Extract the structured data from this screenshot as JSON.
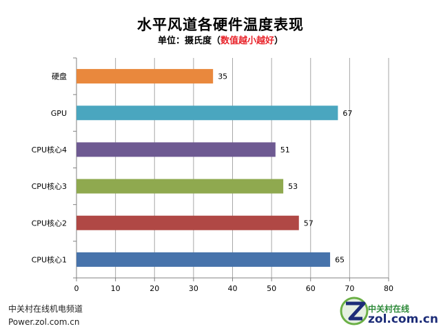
{
  "title": "水平风道各硬件温度表现",
  "subtitle_prefix": "单位：摄氏度（",
  "subtitle_highlight": "数值越小越好",
  "subtitle_suffix": "）",
  "footer": {
    "line1": "中关村在线机电频道",
    "line2": "Power.zol.com.cn"
  },
  "logo": {
    "cn": "中关村在线",
    "en": "zol.com.cn",
    "icon": "zol-z-logo-icon"
  },
  "colors": {
    "grid": "#a6a6a6",
    "axis": "#808080",
    "accent_red": "#e8232a"
  },
  "chart_data": {
    "type": "bar",
    "orientation": "horizontal",
    "categories": [
      "硬盘",
      "GPU",
      "CPU核心4",
      "CPU核心3",
      "CPU核心2",
      "CPU核心1"
    ],
    "values": [
      35,
      67,
      51,
      53,
      57,
      65
    ],
    "bar_colors": [
      "#e9883d",
      "#4aa6bf",
      "#6e5a92",
      "#8fa94f",
      "#b04845",
      "#4773ab"
    ],
    "data_labels": [
      "35",
      "67",
      "51",
      "53",
      "57",
      "65"
    ],
    "xlim": [
      0,
      80
    ],
    "xticks": [
      "0",
      "10",
      "20",
      "30",
      "40",
      "50",
      "60",
      "70",
      "80"
    ],
    "grid": true,
    "legend": "none",
    "xlabel": "",
    "ylabel": ""
  }
}
